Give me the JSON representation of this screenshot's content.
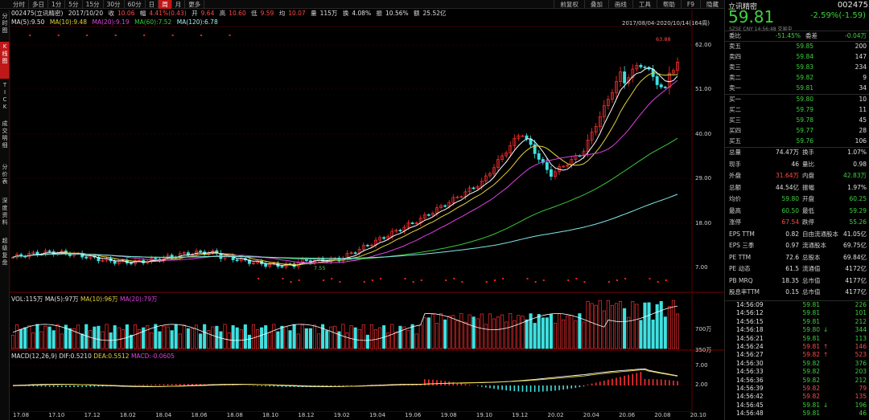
{
  "top_tabs": [
    "分时",
    "多日",
    "1分",
    "5分",
    "15分",
    "30分",
    "60分",
    "日",
    "周",
    "月",
    "更多"
  ],
  "top_tabs_active": 8,
  "tool_buttons": [
    "前复权",
    "叠加",
    "画线",
    "工具",
    "帮助",
    "F9",
    "隐藏"
  ],
  "quote": {
    "code_name": "002475(立讯精密)",
    "date": "2017/10/20",
    "close_label": "收",
    "close": "10.06",
    "change_label": "幅",
    "change": "4.41%(0.43)",
    "open_label": "开",
    "open": "9.64",
    "high_label": "高",
    "high": "10.60",
    "low_label": "低",
    "low": "9.59",
    "avg_label": "均",
    "avg": "10.07",
    "vol_label": "量",
    "vol": "115万",
    "turn_label": "换",
    "turn": "4.08%",
    "amp_label": "振",
    "amp": "10.56%",
    "amt_label": "额",
    "amt": "25.52亿"
  },
  "ma": [
    {
      "text": "MA(5):9.50"
    },
    {
      "text": "MA(10):9.48"
    },
    {
      "text": "MA(20):9.19"
    },
    {
      "text": "MA(60):7.52"
    },
    {
      "text": "MA(120):6.78"
    }
  ],
  "range_label": "2017/08/04-2020/10/14(164周)",
  "price_axis": [
    "62.00",
    "51.00",
    "40.00",
    "29.00",
    "18.00",
    "7.00"
  ],
  "high_mark": "63.88",
  "low_mark": "7.55",
  "left_tabs": [
    "分时图",
    "K线图",
    "TICK",
    "成交明细",
    "分价表",
    "深度资料",
    "超级复盘"
  ],
  "left_active": 1,
  "volume": {
    "label": "VOL:115万",
    "ma5": "MA(5):97万",
    "ma10": "MA(10):96万",
    "ma20": "MA(20):79万",
    "axis": [
      "700万",
      "350万"
    ]
  },
  "macd": {
    "label": "MACD(12,26,9)",
    "dif": "DIF:0.5210",
    "dea": "DEA:0.5512",
    "macd": "MACD:-0.0605",
    "axis": [
      "7.00",
      "2.00"
    ]
  },
  "x_dates": [
    "17.08",
    "17.10",
    "17.12",
    "18.02",
    "18.04",
    "18.06",
    "18.08",
    "18.10",
    "18.12",
    "19.02",
    "19.04",
    "19.06",
    "19.08",
    "19.10",
    "19.12",
    "20.02",
    "20.04",
    "20.06",
    "20.08",
    "20.10"
  ],
  "stock": {
    "name": "立讯精密",
    "code": "002475",
    "price": "59.81",
    "change": "-2.59%(-1.59)",
    "sub": "SZSE  CNY  14:56:48  交易中"
  },
  "ratio": {
    "l1": "委比",
    "v1": "-51.45%",
    "l2": "委差",
    "v2": "-0.04万"
  },
  "asks": [
    {
      "label": "卖五",
      "price": "59.85",
      "vol": "200"
    },
    {
      "label": "卖四",
      "price": "59.84",
      "vol": "147"
    },
    {
      "label": "卖三",
      "price": "59.83",
      "vol": "234"
    },
    {
      "label": "卖二",
      "price": "59.82",
      "vol": "9"
    },
    {
      "label": "卖一",
      "price": "59.81",
      "vol": "34"
    }
  ],
  "bids": [
    {
      "label": "买一",
      "price": "59.80",
      "vol": "10"
    },
    {
      "label": "买二",
      "price": "59.79",
      "vol": "11"
    },
    {
      "label": "买三",
      "price": "59.78",
      "vol": "45"
    },
    {
      "label": "买四",
      "price": "59.77",
      "vol": "28"
    },
    {
      "label": "买五",
      "price": "59.76",
      "vol": "106"
    }
  ],
  "stats": [
    {
      "l1": "总量",
      "v1": "74.47万",
      "c1": "wht",
      "l2": "换手",
      "v2": "1.07%",
      "c2": "wht"
    },
    {
      "l1": "现手",
      "v1": "46",
      "c1": "wht",
      "l2": "量比",
      "v2": "0.98",
      "c2": "wht"
    },
    {
      "l1": "外盘",
      "v1": "31.64万",
      "c1": "up",
      "l2": "内盘",
      "v2": "42.83万",
      "c2": "dn"
    },
    {
      "l1": "总额",
      "v1": "44.54亿",
      "c1": "wht",
      "l2": "振幅",
      "v2": "1.97%",
      "c2": "wht"
    },
    {
      "l1": "均价",
      "v1": "59.80",
      "c1": "dn",
      "l2": "开盘",
      "v2": "60.25",
      "c2": "dn"
    },
    {
      "l1": "最高",
      "v1": "60.50",
      "c1": "dn",
      "l2": "最低",
      "v2": "59.29",
      "c2": "dn"
    },
    {
      "l1": "涨停",
      "v1": "67.54",
      "c1": "up",
      "l2": "跌停",
      "v2": "55.26",
      "c2": "dn"
    },
    {
      "l1": "EPS TTM",
      "v1": "0.82",
      "c1": "wht",
      "l2": "自由流通股本",
      "v2": "41.05亿",
      "c2": "wht"
    },
    {
      "l1": "EPS 三季",
      "v1": "0.97",
      "c1": "wht",
      "l2": "流通股本",
      "v2": "69.75亿",
      "c2": "wht"
    },
    {
      "l1": "PE TTM",
      "v1": "72.6",
      "c1": "wht",
      "l2": "总股本",
      "v2": "69.84亿",
      "c2": "wht"
    },
    {
      "l1": "PE 动态",
      "v1": "61.5",
      "c1": "wht",
      "l2": "流通值",
      "v2": "4172亿",
      "c2": "wht"
    },
    {
      "l1": "PB MRQ",
      "v1": "18.35",
      "c1": "wht",
      "l2": "总市值",
      "v2": "4177亿",
      "c2": "wht"
    },
    {
      "l1": "股息率TTM",
      "v1": "0.15",
      "c1": "wht",
      "l2": "总市值",
      "v2": "4177亿",
      "c2": "wht"
    }
  ],
  "ticks": [
    {
      "t": "14:56:09",
      "p": "59.81",
      "a": "",
      "v": "226",
      "c": "dn"
    },
    {
      "t": "14:56:12",
      "p": "59.81",
      "a": "",
      "v": "101",
      "c": "dn"
    },
    {
      "t": "14:56:15",
      "p": "59.81",
      "a": "",
      "v": "212",
      "c": "dn"
    },
    {
      "t": "14:56:18",
      "p": "59.80",
      "a": "↓",
      "v": "344",
      "c": "dn"
    },
    {
      "t": "14:56:21",
      "p": "59.81",
      "a": "",
      "v": "113",
      "c": "dn"
    },
    {
      "t": "14:56:24",
      "p": "59.81",
      "a": "↑",
      "v": "146",
      "c": "up"
    },
    {
      "t": "14:56:27",
      "p": "59.82",
      "a": "↑",
      "v": "523",
      "c": "up"
    },
    {
      "t": "14:56:30",
      "p": "59.82",
      "a": "",
      "v": "376",
      "c": "dn"
    },
    {
      "t": "14:56:33",
      "p": "59.82",
      "a": "",
      "v": "203",
      "c": "dn"
    },
    {
      "t": "14:56:36",
      "p": "59.82",
      "a": "",
      "v": "212",
      "c": "dn"
    },
    {
      "t": "14:56:39",
      "p": "59.82",
      "a": "",
      "v": "79",
      "c": "up"
    },
    {
      "t": "14:56:42",
      "p": "59.82",
      "a": "",
      "v": "135",
      "c": "up"
    },
    {
      "t": "14:56:45",
      "p": "59.81",
      "a": "↓",
      "v": "196",
      "c": "dn"
    },
    {
      "t": "14:56:48",
      "p": "59.81",
      "a": "",
      "v": "46",
      "c": "dn"
    }
  ]
}
